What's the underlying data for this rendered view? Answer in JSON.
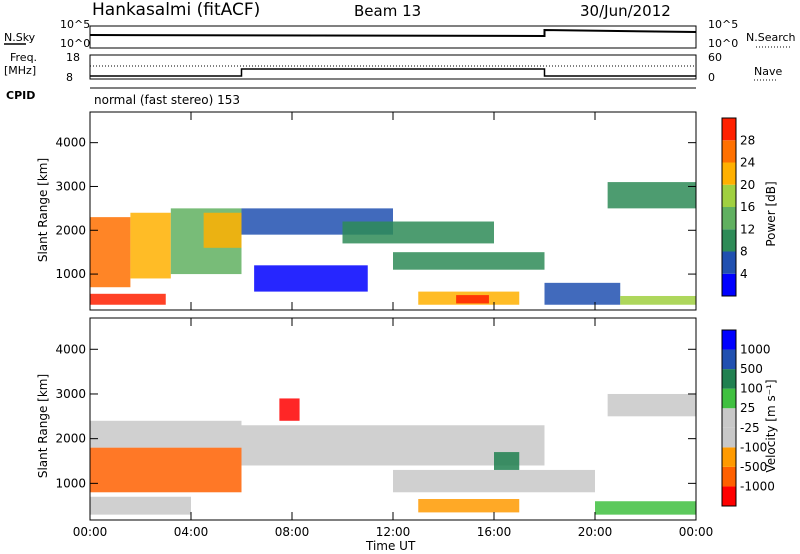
{
  "header": {
    "station": "Hankasalmi (fitACF)",
    "beam": "Beam 13",
    "date": "30/Jun/2012"
  },
  "strips": {
    "nsky_label": "N.Sky",
    "nsky_ticks": [
      "10^5",
      "10^0"
    ],
    "nsearch_label": "N.Search",
    "nsearch_ticks": [
      "10^5",
      "10^0"
    ],
    "freq_label_1": "Freq.",
    "freq_label_2": "[MHz]",
    "freq_ticks": [
      "18",
      "8"
    ],
    "nave_label": "Nave",
    "nave_ticks": [
      "60",
      "0"
    ],
    "cpid_label": "CPID",
    "cpid_text": "normal (fast stereo) 153"
  },
  "colors": {
    "power": [
      "#0000ff",
      "#2050b0",
      "#2e8b57",
      "#60b060",
      "#a0d040",
      "#ffb000",
      "#ff7000",
      "#ff2000"
    ],
    "velocity": [
      "#ff0000",
      "#ff6000",
      "#ff9a00",
      "#c8c8c8",
      "#c8c8c8",
      "#40c040",
      "#208050",
      "#2050b0",
      "#0000ff"
    ]
  },
  "chart_data": [
    {
      "type": "heatmap",
      "title": "Power",
      "ylabel": "Slant Range [km]",
      "xlabel": "",
      "x_ticks": [
        "00:00",
        "04:00",
        "08:00",
        "12:00",
        "16:00",
        "20:00",
        "00:00"
      ],
      "y_ticks": [
        1000,
        2000,
        3000,
        4000
      ],
      "ylim": [
        180,
        4700
      ],
      "xlim_hours": [
        0,
        24
      ],
      "colorbar_label": "Power [dB]",
      "colorbar_ticks": [
        "4",
        "8",
        "12",
        "16",
        "20",
        "24",
        "28"
      ],
      "regions": [
        {
          "t0": 0.0,
          "t1": 1.6,
          "r0": 700,
          "r1": 2300,
          "level": 6
        },
        {
          "t0": 1.6,
          "t1": 3.2,
          "r0": 900,
          "r1": 2400,
          "level": 5
        },
        {
          "t0": 3.2,
          "t1": 6.0,
          "r0": 1000,
          "r1": 2500,
          "level": 3
        },
        {
          "t0": 0.0,
          "t1": 3.0,
          "r0": 300,
          "r1": 550,
          "level": 7
        },
        {
          "t0": 4.5,
          "t1": 6.0,
          "r0": 1600,
          "r1": 2400,
          "level": 5
        },
        {
          "t0": 6.0,
          "t1": 12.0,
          "r0": 1900,
          "r1": 2500,
          "level": 1
        },
        {
          "t0": 6.5,
          "t1": 11.0,
          "r0": 600,
          "r1": 1200,
          "level": 0
        },
        {
          "t0": 10.0,
          "t1": 16.0,
          "r0": 1700,
          "r1": 2200,
          "level": 2
        },
        {
          "t0": 12.0,
          "t1": 18.0,
          "r0": 1100,
          "r1": 1500,
          "level": 2
        },
        {
          "t0": 13.0,
          "t1": 17.0,
          "r0": 300,
          "r1": 600,
          "level": 5
        },
        {
          "t0": 14.5,
          "t1": 15.8,
          "r0": 330,
          "r1": 520,
          "level": 7
        },
        {
          "t0": 18.0,
          "t1": 21.0,
          "r0": 300,
          "r1": 800,
          "level": 1
        },
        {
          "t0": 20.5,
          "t1": 24.0,
          "r0": 2500,
          "r1": 3100,
          "level": 2
        },
        {
          "t0": 21.0,
          "t1": 24.0,
          "r0": 300,
          "r1": 500,
          "level": 4
        }
      ]
    },
    {
      "type": "heatmap",
      "title": "Velocity",
      "ylabel": "Slant Range [km]",
      "xlabel": "Time UT",
      "x_ticks": [
        "00:00",
        "04:00",
        "08:00",
        "12:00",
        "16:00",
        "20:00",
        "00:00"
      ],
      "y_ticks": [
        1000,
        2000,
        3000,
        4000
      ],
      "ylim": [
        180,
        4700
      ],
      "xlim_hours": [
        0,
        24
      ],
      "colorbar_label": "Velocity [m s⁻¹]",
      "colorbar_ticks": [
        "-1000",
        "-500",
        "-100",
        "-25",
        "25",
        "100",
        "500",
        "1000"
      ],
      "regions": [
        {
          "t0": 0.0,
          "t1": 6.0,
          "r0": 800,
          "r1": 1800,
          "level": 1
        },
        {
          "t0": 0.0,
          "t1": 6.0,
          "r0": 1800,
          "r1": 2400,
          "level": 3
        },
        {
          "t0": 0.0,
          "t1": 4.0,
          "r0": 300,
          "r1": 700,
          "level": 3
        },
        {
          "t0": 7.5,
          "t1": 8.3,
          "r0": 2400,
          "r1": 2900,
          "level": 0
        },
        {
          "t0": 6.0,
          "t1": 18.0,
          "r0": 1400,
          "r1": 2300,
          "level": 3
        },
        {
          "t0": 13.0,
          "t1": 17.0,
          "r0": 350,
          "r1": 650,
          "level": 2
        },
        {
          "t0": 12.0,
          "t1": 20.0,
          "r0": 800,
          "r1": 1300,
          "level": 3
        },
        {
          "t0": 20.5,
          "t1": 24.0,
          "r0": 2500,
          "r1": 3000,
          "level": 3
        },
        {
          "t0": 20.0,
          "t1": 24.0,
          "r0": 300,
          "r1": 600,
          "level": 5
        },
        {
          "t0": 16.0,
          "t1": 17.0,
          "r0": 1300,
          "r1": 1700,
          "level": 6
        }
      ]
    }
  ]
}
